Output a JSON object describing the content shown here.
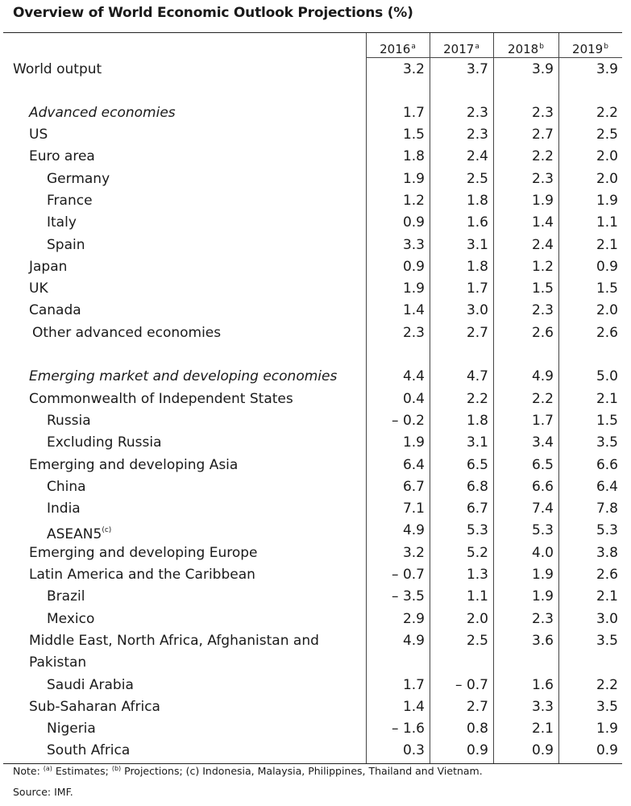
{
  "title": "Overview of World Economic Outlook Projections (%)",
  "headers": [
    {
      "year": "2016",
      "mark": "a"
    },
    {
      "year": "2017",
      "mark": "a"
    },
    {
      "year": "2018",
      "mark": "b"
    },
    {
      "year": "2019",
      "mark": "b"
    }
  ],
  "rows": [
    {
      "label": "World output",
      "values": [
        "3.2",
        "3.7",
        "3.9",
        "3.9"
      ]
    },
    {
      "label": "Advanced economies",
      "values": [
        "1.7",
        "2.3",
        "2.3",
        "2.2"
      ]
    },
    {
      "label": "US",
      "values": [
        "1.5",
        "2.3",
        "2.7",
        "2.5"
      ]
    },
    {
      "label": "Euro area",
      "values": [
        "1.8",
        "2.4",
        "2.2",
        "2.0"
      ]
    },
    {
      "label": "Germany",
      "values": [
        "1.9",
        "2.5",
        "2.3",
        "2.0"
      ]
    },
    {
      "label": "France",
      "values": [
        "1.2",
        "1.8",
        "1.9",
        "1.9"
      ]
    },
    {
      "label": "Italy",
      "values": [
        "0.9",
        "1.6",
        "1.4",
        "1.1"
      ]
    },
    {
      "label": "Spain",
      "values": [
        "3.3",
        "3.1",
        "2.4",
        "2.1"
      ]
    },
    {
      "label": "Japan",
      "values": [
        "0.9",
        "1.8",
        "1.2",
        "0.9"
      ]
    },
    {
      "label": "UK",
      "values": [
        "1.9",
        "1.7",
        "1.5",
        "1.5"
      ]
    },
    {
      "label": "Canada",
      "values": [
        "1.4",
        "3.0",
        "2.3",
        "2.0"
      ]
    },
    {
      "label": "Other advanced economies",
      "values": [
        "2.3",
        "2.7",
        "2.6",
        "2.6"
      ]
    },
    {
      "label": "Emerging market and developing economies",
      "values": [
        "4.4",
        "4.7",
        "4.9",
        "5.0"
      ]
    },
    {
      "label": "Commonwealth of Independent States",
      "values": [
        "0.4",
        "2.2",
        "2.2",
        "2.1"
      ]
    },
    {
      "label": "Russia",
      "values": [
        "– 0.2",
        "1.8",
        "1.7",
        "1.5"
      ]
    },
    {
      "label": "Excluding Russia",
      "values": [
        "1.9",
        "3.1",
        "3.4",
        "3.5"
      ]
    },
    {
      "label": "Emerging and developing Asia",
      "values": [
        "6.4",
        "6.5",
        "6.5",
        "6.6"
      ]
    },
    {
      "label": "China",
      "values": [
        "6.7",
        "6.8",
        "6.6",
        "6.4"
      ]
    },
    {
      "label": "India",
      "values": [
        "7.1",
        "6.7",
        "7.4",
        "7.8"
      ]
    },
    {
      "label": "ASEAN5",
      "mark": "(c)",
      "values": [
        "4.9",
        "5.3",
        "5.3",
        "5.3"
      ]
    },
    {
      "label": "Emerging and developing Europe",
      "values": [
        "3.2",
        "5.2",
        "4.0",
        "3.8"
      ]
    },
    {
      "label": "Latin America and the Caribbean",
      "values": [
        "– 0.7",
        "1.3",
        "1.9",
        "2.6"
      ]
    },
    {
      "label": "Brazil",
      "values": [
        "– 3.5",
        "1.1",
        "1.9",
        "2.1"
      ]
    },
    {
      "label": "Mexico",
      "values": [
        "2.9",
        "2.0",
        "2.3",
        "3.0"
      ]
    },
    {
      "label": "Middle East, North Africa, Afghanistan and",
      "label2": "Pakistan",
      "values": [
        "4.9",
        "2.5",
        "3.6",
        "3.5"
      ]
    },
    {
      "label": "Saudi Arabia",
      "values": [
        "1.7",
        "– 0.7",
        "1.6",
        "2.2"
      ]
    },
    {
      "label": "Sub-Saharan Africa",
      "values": [
        "1.4",
        "2.7",
        "3.3",
        "3.5"
      ]
    },
    {
      "label": "Nigeria",
      "values": [
        "– 1.6",
        "0.8",
        "2.1",
        "1.9"
      ]
    },
    {
      "label": "South Africa",
      "values": [
        "0.3",
        "0.9",
        "0.9",
        "0.9"
      ]
    }
  ],
  "note": {
    "prefix": "Note: ",
    "mark_a": "(a)",
    "text_a": " Estimates; ",
    "mark_b": "(b)",
    "text_b": " Projections; (c) Indonesia, Malaysia, Philippines, Thailand and Vietnam."
  },
  "source": "Source: IMF."
}
